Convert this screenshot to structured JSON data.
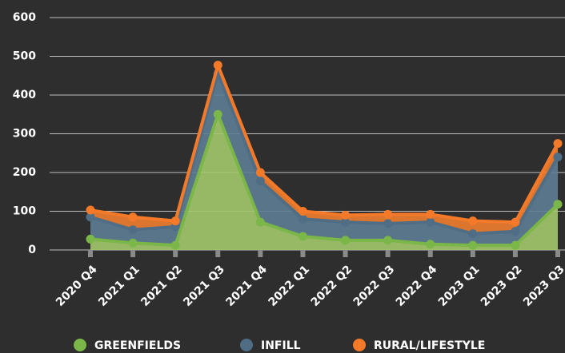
{
  "chart_data": {
    "type": "stacked-area",
    "categories": [
      "2020 Q4",
      "2021 Q1",
      "2021 Q2",
      "2021 Q3",
      "2021 Q4",
      "2022 Q1",
      "2022 Q2",
      "2022 Q3",
      "2022 Q4",
      "2023 Q1",
      "2023 Q2",
      "2023 Q3"
    ],
    "series": [
      {
        "name": "GREENFIELDS",
        "color": "#7ab648",
        "fill": "#a3c96c",
        "values": [
          28,
          18,
          12,
          350,
          72,
          35,
          25,
          25,
          15,
          12,
          12,
          118
        ]
      },
      {
        "name": "INFILL",
        "color": "#4f6d84",
        "fill": "#5d7d95",
        "values": [
          57,
          34,
          48,
          105,
          106,
          45,
          47,
          43,
          57,
          30,
          36,
          122
        ]
      },
      {
        "name": "RURAL/LIFESTYLE",
        "color": "#f47a2a",
        "fill": "#f07d2e",
        "values": [
          18,
          33,
          15,
          22,
          22,
          20,
          18,
          24,
          20,
          33,
          24,
          35
        ]
      }
    ],
    "ylim": [
      0,
      600
    ],
    "yticks": [
      0,
      100,
      200,
      300,
      400,
      500,
      600
    ],
    "grid": true,
    "legend": "bottom"
  }
}
